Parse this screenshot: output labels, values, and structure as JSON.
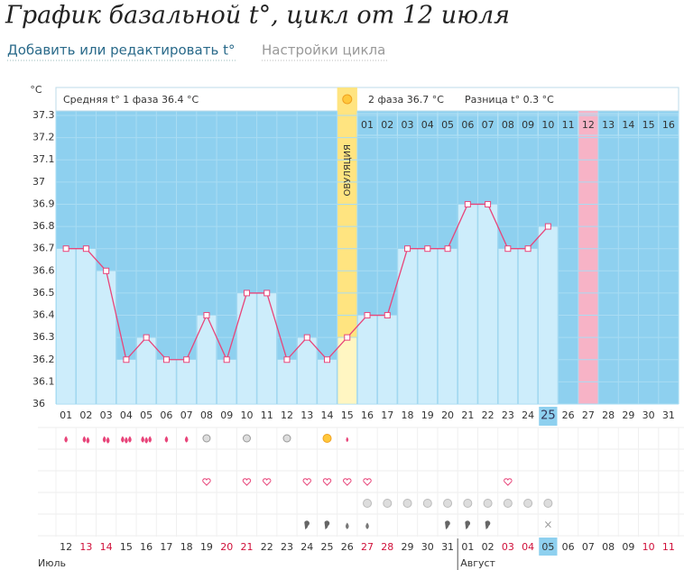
{
  "header": {
    "title": "График базальной t°, цикл от 12 июля",
    "link_edit": "Добавить или редактировать t°",
    "link_settings": "Настройки цикла"
  },
  "summary": {
    "phase1": "Средняя t° 1 фаза 36.4 °C",
    "ovulation": "ОВУЛЯЦИЯ",
    "phase2": "2 фаза 36.7 °C",
    "difference": "Разница t° 0.3 °C"
  },
  "chart_data": {
    "type": "line",
    "y_unit": "°C",
    "categories": [
      "01",
      "02",
      "03",
      "04",
      "05",
      "06",
      "07",
      "08",
      "09",
      "10",
      "11",
      "12",
      "13",
      "14",
      "15",
      "16",
      "17",
      "18",
      "19",
      "20",
      "21",
      "22",
      "23",
      "24",
      "25",
      "26",
      "27",
      "28",
      "29",
      "30",
      "31"
    ],
    "values": [
      36.7,
      36.7,
      36.6,
      36.2,
      36.3,
      36.2,
      36.2,
      36.4,
      36.2,
      36.5,
      36.5,
      36.2,
      36.3,
      36.2,
      36.3,
      36.4,
      36.4,
      36.7,
      36.7,
      36.7,
      36.9,
      36.9,
      36.7,
      36.7,
      36.8,
      null,
      null,
      null,
      null,
      null,
      null
    ],
    "color": "#e8457a",
    "ylim": [
      36,
      37.3
    ],
    "yticks": [
      36,
      36.1,
      36.2,
      36.3,
      36.4,
      36.5,
      36.6,
      36.7,
      36.8,
      36.9,
      37,
      37.1,
      37.2,
      37.3
    ],
    "phase2_days": [
      "01",
      "02",
      "03",
      "04",
      "05",
      "06",
      "07",
      "08",
      "09",
      "10",
      "11",
      "12",
      "13",
      "14",
      "15",
      "16"
    ],
    "dates": [
      "12",
      "13",
      "14",
      "15",
      "16",
      "17",
      "18",
      "19",
      "20",
      "21",
      "22",
      "23",
      "24",
      "25",
      "26",
      "27",
      "28",
      "29",
      "30",
      "31",
      "01",
      "02",
      "03",
      "04",
      "05",
      "06",
      "07",
      "08",
      "09",
      "10",
      "11"
    ],
    "months": [
      "Июль",
      "Август"
    ]
  }
}
